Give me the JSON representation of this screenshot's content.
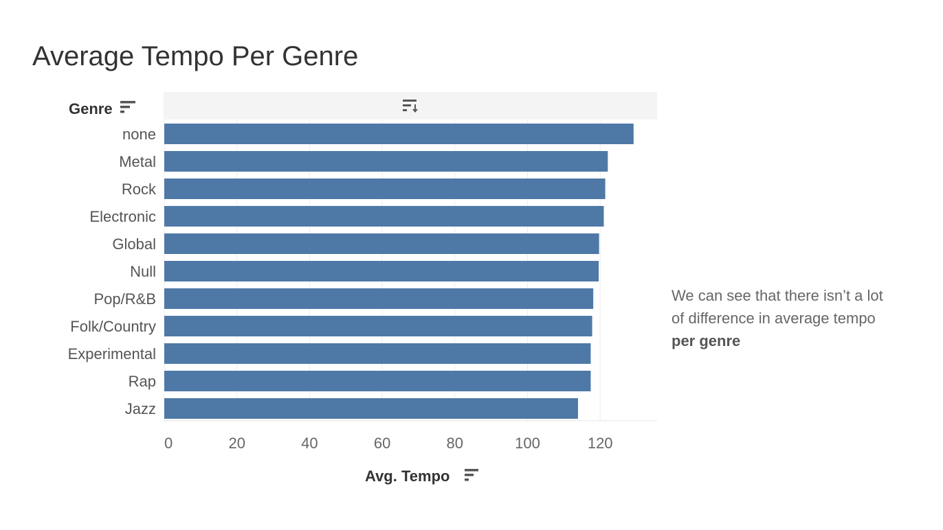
{
  "title": "Average Tempo Per Genre",
  "annotation": {
    "text_plain": "We can see that there isn’t a lot of difference in average tempo",
    "text_bold": "per genre"
  },
  "colors": {
    "bar": "#4e79a7",
    "header_band": "#f4f4f4",
    "gridline": "#ececec",
    "title_text": "#333333",
    "axis_text": "#666666",
    "sort_icon": "#555555"
  },
  "icons": {
    "row_header_sort": "sort-descending-icon",
    "column_sort": "sort-toggle-icon",
    "x_axis_sort": "sort-descending-icon"
  },
  "chart_data": {
    "type": "bar",
    "orientation": "horizontal",
    "title": "Average Tempo Per Genre",
    "ylabel": "Genre",
    "xlabel": "Avg. Tempo",
    "categories": [
      "none",
      "Metal",
      "Rock",
      "Electronic",
      "Global",
      "Null",
      "Pop/R&B",
      "Folk/Country",
      "Experimental",
      "Rap",
      "Jazz"
    ],
    "values": [
      129.2,
      122.1,
      121.4,
      121.0,
      119.7,
      119.6,
      118.1,
      117.8,
      117.4,
      117.4,
      113.9
    ],
    "xlim": [
      0,
      135
    ],
    "xticks": [
      0,
      20,
      40,
      60,
      80,
      100,
      120
    ],
    "xtick_labels": [
      "0",
      "20",
      "40",
      "60",
      "80",
      "100",
      "120"
    ],
    "grid": true,
    "legend": "none"
  }
}
